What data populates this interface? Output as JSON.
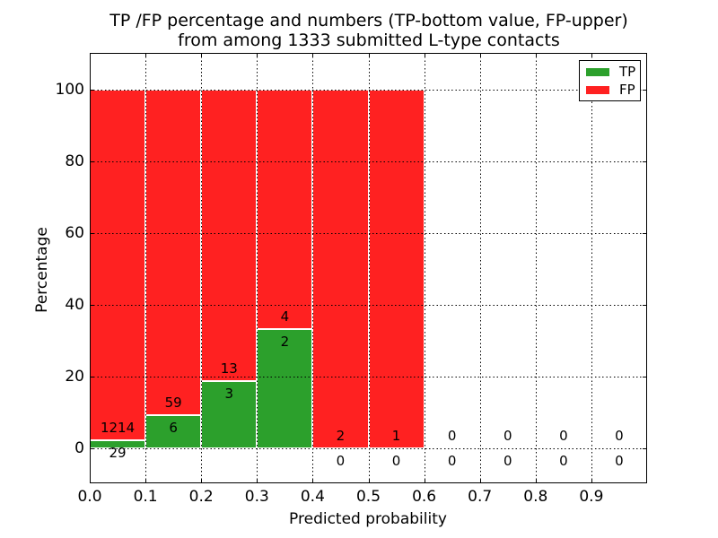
{
  "title": {
    "line1": "TP /FP percentage and numbers (TP-bottom value, FP-upper)",
    "line2": "from among 1333 submitted L-type contacts"
  },
  "axes": {
    "xlabel": "Predicted probability",
    "ylabel": "Percentage"
  },
  "chart_data": {
    "type": "bar",
    "stacked": true,
    "title": "TP /FP percentage and numbers (TP-bottom value, FP-upper) from among 1333 submitted L-type contacts",
    "xlabel": "Predicted probability",
    "ylabel": "Percentage",
    "x_tick_labels": [
      "0.0",
      "0.1",
      "0.2",
      "0.3",
      "0.4",
      "0.5",
      "0.6",
      "0.7",
      "0.8",
      "0.9"
    ],
    "y_tick_values": [
      0,
      20,
      40,
      60,
      80,
      100
    ],
    "xlim": [
      0.0,
      1.0
    ],
    "ylim": [
      0,
      100
    ],
    "grid": "dotted",
    "legend_position": "upper right",
    "total_submitted": 1333,
    "series_names": [
      "TP",
      "FP"
    ],
    "colors": {
      "tp": "#2ca02c",
      "fp": "#ff2121",
      "grid": "#000000"
    },
    "bins": [
      {
        "x_range": [
          0.0,
          0.1
        ],
        "tp": 29,
        "fp": 1214,
        "tp_pct": 2.33,
        "fp_pct": 97.67
      },
      {
        "x_range": [
          0.1,
          0.2
        ],
        "tp": 6,
        "fp": 59,
        "tp_pct": 9.23,
        "fp_pct": 90.77
      },
      {
        "x_range": [
          0.2,
          0.3
        ],
        "tp": 3,
        "fp": 13,
        "tp_pct": 18.75,
        "fp_pct": 81.25
      },
      {
        "x_range": [
          0.3,
          0.4
        ],
        "tp": 2,
        "fp": 4,
        "tp_pct": 33.33,
        "fp_pct": 66.67
      },
      {
        "x_range": [
          0.4,
          0.5
        ],
        "tp": 0,
        "fp": 2,
        "tp_pct": 0.0,
        "fp_pct": 100.0
      },
      {
        "x_range": [
          0.5,
          0.6
        ],
        "tp": 0,
        "fp": 1,
        "tp_pct": 0.0,
        "fp_pct": 100.0
      },
      {
        "x_range": [
          0.6,
          0.7
        ],
        "tp": 0,
        "fp": 0,
        "tp_pct": 0.0,
        "fp_pct": 0.0
      },
      {
        "x_range": [
          0.7,
          0.8
        ],
        "tp": 0,
        "fp": 0,
        "tp_pct": 0.0,
        "fp_pct": 0.0
      },
      {
        "x_range": [
          0.8,
          0.9
        ],
        "tp": 0,
        "fp": 0,
        "tp_pct": 0.0,
        "fp_pct": 0.0
      },
      {
        "x_range": [
          0.9,
          1.0
        ],
        "tp": 0,
        "fp": 0,
        "tp_pct": 0.0,
        "fp_pct": 0.0
      }
    ],
    "legend": {
      "entries": [
        {
          "label": "TP",
          "color": "#2ca02c"
        },
        {
          "label": "FP",
          "color": "#ff2121"
        }
      ]
    }
  }
}
